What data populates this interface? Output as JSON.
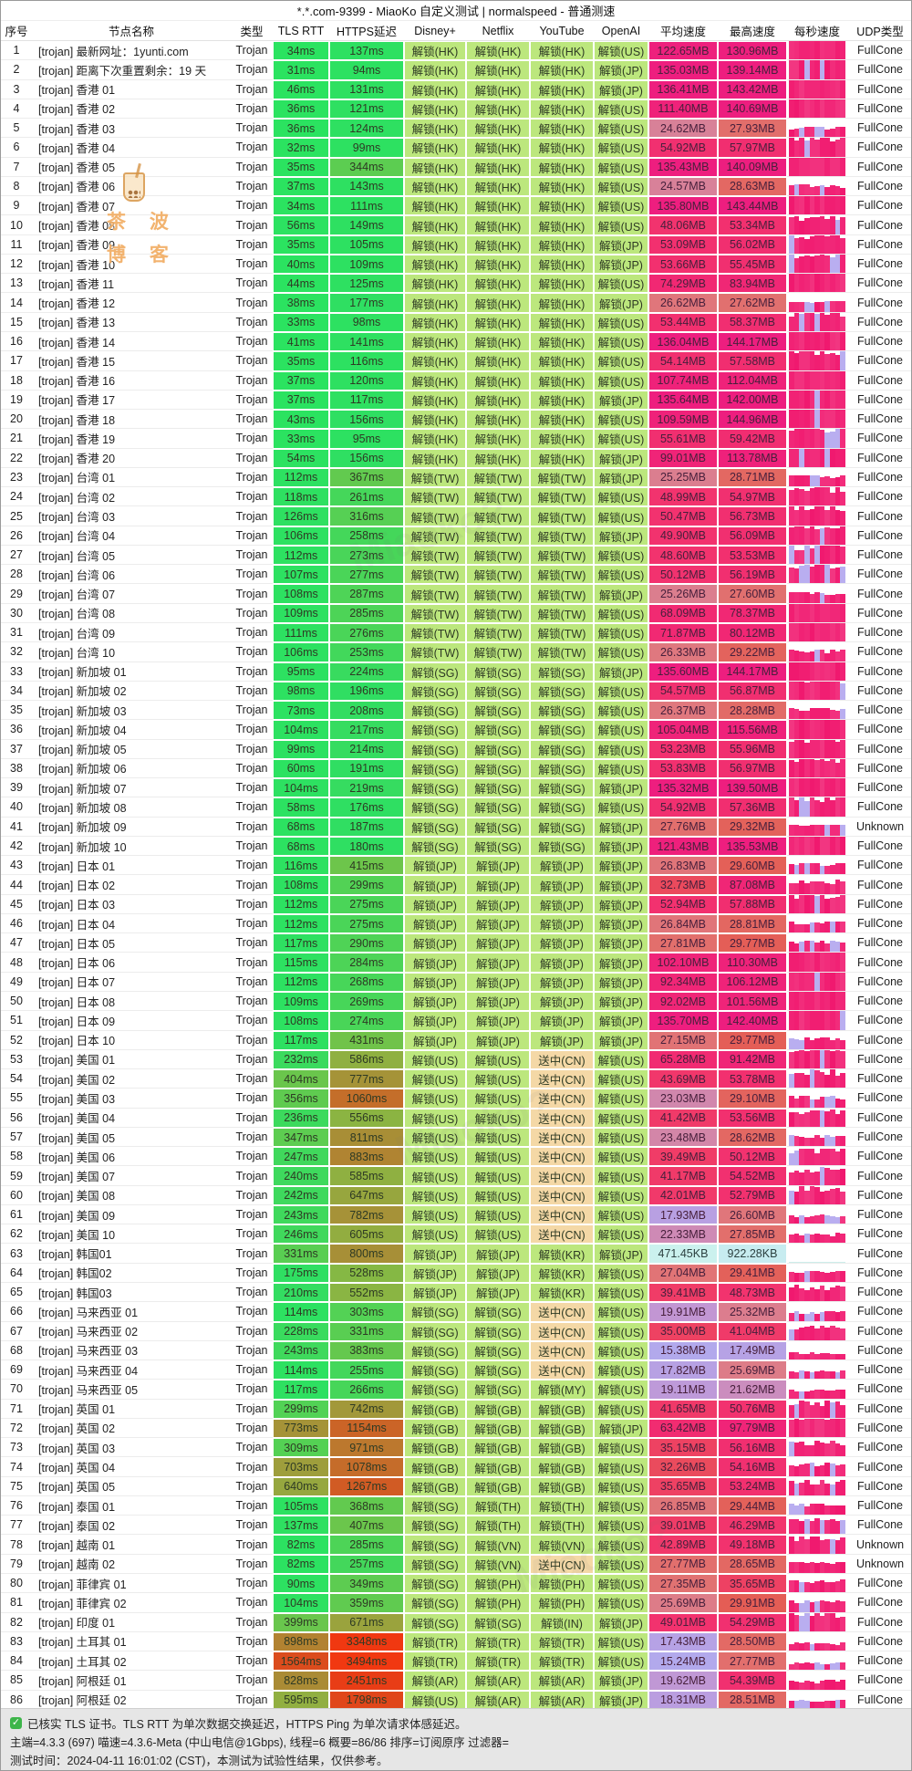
{
  "window": {
    "title": "*.*.com-9399 - MiaoKo 自定义测试 | normalspeed - 普通测速"
  },
  "table": {
    "columns": [
      "序号",
      "节点名称",
      "类型",
      "TLS RTT",
      "HTTPS延迟",
      "Disney+",
      "Netflix",
      "YouTube",
      "OpenAI",
      "平均速度",
      "最高速度",
      "每秒速度",
      "UDP类型"
    ],
    "type_label": "Trojan",
    "rows": [
      [
        "[trojan] 最新网址：1yunti.com",
        "34ms",
        "137ms",
        "解锁(HK)",
        "解锁(HK)",
        "解锁(HK)",
        "解锁(US)",
        "122.65MB",
        "130.96MB",
        "FullCone"
      ],
      [
        "[trojan] 距离下次重置剩余：19 天",
        "31ms",
        "94ms",
        "解锁(HK)",
        "解锁(HK)",
        "解锁(HK)",
        "解锁(JP)",
        "135.03MB",
        "139.14MB",
        "FullCone"
      ],
      [
        "[trojan] 香港 01",
        "46ms",
        "131ms",
        "解锁(HK)",
        "解锁(HK)",
        "解锁(HK)",
        "解锁(JP)",
        "136.41MB",
        "143.42MB",
        "FullCone"
      ],
      [
        "[trojan] 香港 02",
        "36ms",
        "121ms",
        "解锁(HK)",
        "解锁(HK)",
        "解锁(HK)",
        "解锁(US)",
        "111.40MB",
        "140.69MB",
        "FullCone"
      ],
      [
        "[trojan] 香港 03",
        "36ms",
        "124ms",
        "解锁(HK)",
        "解锁(HK)",
        "解锁(HK)",
        "解锁(US)",
        "24.62MB",
        "27.93MB",
        "FullCone"
      ],
      [
        "[trojan] 香港 04",
        "32ms",
        "99ms",
        "解锁(HK)",
        "解锁(HK)",
        "解锁(HK)",
        "解锁(US)",
        "54.92MB",
        "57.97MB",
        "FullCone"
      ],
      [
        "[trojan] 香港 05",
        "35ms",
        "344ms",
        "解锁(HK)",
        "解锁(HK)",
        "解锁(HK)",
        "解锁(US)",
        "135.43MB",
        "140.09MB",
        "FullCone"
      ],
      [
        "[trojan] 香港 06",
        "37ms",
        "143ms",
        "解锁(HK)",
        "解锁(HK)",
        "解锁(HK)",
        "解锁(US)",
        "24.57MB",
        "28.63MB",
        "FullCone"
      ],
      [
        "[trojan] 香港 07",
        "34ms",
        "111ms",
        "解锁(HK)",
        "解锁(HK)",
        "解锁(HK)",
        "解锁(US)",
        "135.80MB",
        "143.44MB",
        "FullCone"
      ],
      [
        "[trojan] 香港 08",
        "56ms",
        "149ms",
        "解锁(HK)",
        "解锁(HK)",
        "解锁(HK)",
        "解锁(US)",
        "48.06MB",
        "53.34MB",
        "FullCone"
      ],
      [
        "[trojan] 香港 09",
        "35ms",
        "105ms",
        "解锁(HK)",
        "解锁(HK)",
        "解锁(HK)",
        "解锁(JP)",
        "53.09MB",
        "56.02MB",
        "FullCone"
      ],
      [
        "[trojan] 香港 10",
        "40ms",
        "109ms",
        "解锁(HK)",
        "解锁(HK)",
        "解锁(HK)",
        "解锁(JP)",
        "53.66MB",
        "55.45MB",
        "FullCone"
      ],
      [
        "[trojan] 香港 11",
        "44ms",
        "125ms",
        "解锁(HK)",
        "解锁(HK)",
        "解锁(HK)",
        "解锁(US)",
        "74.29MB",
        "83.94MB",
        "FullCone"
      ],
      [
        "[trojan] 香港 12",
        "38ms",
        "177ms",
        "解锁(HK)",
        "解锁(HK)",
        "解锁(HK)",
        "解锁(JP)",
        "26.62MB",
        "27.62MB",
        "FullCone"
      ],
      [
        "[trojan] 香港 13",
        "33ms",
        "98ms",
        "解锁(HK)",
        "解锁(HK)",
        "解锁(HK)",
        "解锁(US)",
        "53.44MB",
        "58.37MB",
        "FullCone"
      ],
      [
        "[trojan] 香港 14",
        "41ms",
        "141ms",
        "解锁(HK)",
        "解锁(HK)",
        "解锁(HK)",
        "解锁(US)",
        "136.04MB",
        "144.17MB",
        "FullCone"
      ],
      [
        "[trojan] 香港 15",
        "35ms",
        "116ms",
        "解锁(HK)",
        "解锁(HK)",
        "解锁(HK)",
        "解锁(US)",
        "54.14MB",
        "57.58MB",
        "FullCone"
      ],
      [
        "[trojan] 香港 16",
        "37ms",
        "120ms",
        "解锁(HK)",
        "解锁(HK)",
        "解锁(HK)",
        "解锁(US)",
        "107.74MB",
        "112.04MB",
        "FullCone"
      ],
      [
        "[trojan] 香港 17",
        "37ms",
        "117ms",
        "解锁(HK)",
        "解锁(HK)",
        "解锁(HK)",
        "解锁(JP)",
        "135.64MB",
        "142.00MB",
        "FullCone"
      ],
      [
        "[trojan] 香港 18",
        "43ms",
        "156ms",
        "解锁(HK)",
        "解锁(HK)",
        "解锁(HK)",
        "解锁(US)",
        "109.59MB",
        "144.96MB",
        "FullCone"
      ],
      [
        "[trojan] 香港 19",
        "33ms",
        "95ms",
        "解锁(HK)",
        "解锁(HK)",
        "解锁(HK)",
        "解锁(US)",
        "55.61MB",
        "59.42MB",
        "FullCone"
      ],
      [
        "[trojan] 香港 20",
        "54ms",
        "156ms",
        "解锁(HK)",
        "解锁(HK)",
        "解锁(HK)",
        "解锁(JP)",
        "99.01MB",
        "113.78MB",
        "FullCone"
      ],
      [
        "[trojan] 台湾 01",
        "112ms",
        "367ms",
        "解锁(TW)",
        "解锁(TW)",
        "解锁(TW)",
        "解锁(JP)",
        "25.25MB",
        "28.71MB",
        "FullCone"
      ],
      [
        "[trojan] 台湾 02",
        "118ms",
        "261ms",
        "解锁(TW)",
        "解锁(TW)",
        "解锁(TW)",
        "解锁(US)",
        "48.99MB",
        "54.97MB",
        "FullCone"
      ],
      [
        "[trojan] 台湾 03",
        "126ms",
        "316ms",
        "解锁(TW)",
        "解锁(TW)",
        "解锁(TW)",
        "解锁(US)",
        "50.47MB",
        "56.73MB",
        "FullCone"
      ],
      [
        "[trojan] 台湾 04",
        "106ms",
        "258ms",
        "解锁(TW)",
        "解锁(TW)",
        "解锁(TW)",
        "解锁(JP)",
        "49.90MB",
        "56.09MB",
        "FullCone"
      ],
      [
        "[trojan] 台湾 05",
        "112ms",
        "273ms",
        "解锁(TW)",
        "解锁(TW)",
        "解锁(TW)",
        "解锁(US)",
        "48.60MB",
        "53.53MB",
        "FullCone"
      ],
      [
        "[trojan] 台湾 06",
        "107ms",
        "277ms",
        "解锁(TW)",
        "解锁(TW)",
        "解锁(TW)",
        "解锁(US)",
        "50.12MB",
        "56.19MB",
        "FullCone"
      ],
      [
        "[trojan] 台湾 07",
        "108ms",
        "287ms",
        "解锁(TW)",
        "解锁(TW)",
        "解锁(TW)",
        "解锁(JP)",
        "25.26MB",
        "27.60MB",
        "FullCone"
      ],
      [
        "[trojan] 台湾 08",
        "109ms",
        "285ms",
        "解锁(TW)",
        "解锁(TW)",
        "解锁(TW)",
        "解锁(US)",
        "68.09MB",
        "78.37MB",
        "FullCone"
      ],
      [
        "[trojan] 台湾 09",
        "111ms",
        "276ms",
        "解锁(TW)",
        "解锁(TW)",
        "解锁(TW)",
        "解锁(US)",
        "71.87MB",
        "80.12MB",
        "FullCone"
      ],
      [
        "[trojan] 台湾 10",
        "106ms",
        "253ms",
        "解锁(TW)",
        "解锁(TW)",
        "解锁(TW)",
        "解锁(US)",
        "26.33MB",
        "29.22MB",
        "FullCone"
      ],
      [
        "[trojan] 新加坡 01",
        "95ms",
        "224ms",
        "解锁(SG)",
        "解锁(SG)",
        "解锁(SG)",
        "解锁(JP)",
        "135.60MB",
        "144.17MB",
        "FullCone"
      ],
      [
        "[trojan] 新加坡 02",
        "98ms",
        "196ms",
        "解锁(SG)",
        "解锁(SG)",
        "解锁(SG)",
        "解锁(US)",
        "54.57MB",
        "56.87MB",
        "FullCone"
      ],
      [
        "[trojan] 新加坡 03",
        "73ms",
        "208ms",
        "解锁(SG)",
        "解锁(SG)",
        "解锁(SG)",
        "解锁(US)",
        "26.37MB",
        "28.28MB",
        "FullCone"
      ],
      [
        "[trojan] 新加坡 04",
        "104ms",
        "217ms",
        "解锁(SG)",
        "解锁(SG)",
        "解锁(SG)",
        "解锁(US)",
        "105.04MB",
        "115.56MB",
        "FullCone"
      ],
      [
        "[trojan] 新加坡 05",
        "99ms",
        "214ms",
        "解锁(SG)",
        "解锁(SG)",
        "解锁(SG)",
        "解锁(US)",
        "53.23MB",
        "55.96MB",
        "FullCone"
      ],
      [
        "[trojan] 新加坡 06",
        "60ms",
        "191ms",
        "解锁(SG)",
        "解锁(SG)",
        "解锁(SG)",
        "解锁(US)",
        "53.83MB",
        "56.97MB",
        "FullCone"
      ],
      [
        "[trojan] 新加坡 07",
        "104ms",
        "219ms",
        "解锁(SG)",
        "解锁(SG)",
        "解锁(SG)",
        "解锁(JP)",
        "135.32MB",
        "139.50MB",
        "FullCone"
      ],
      [
        "[trojan] 新加坡 08",
        "58ms",
        "176ms",
        "解锁(SG)",
        "解锁(SG)",
        "解锁(SG)",
        "解锁(US)",
        "54.92MB",
        "57.36MB",
        "FullCone"
      ],
      [
        "[trojan] 新加坡 09",
        "68ms",
        "187ms",
        "解锁(SG)",
        "解锁(SG)",
        "解锁(SG)",
        "解锁(JP)",
        "27.76MB",
        "29.32MB",
        "Unknown"
      ],
      [
        "[trojan] 新加坡 10",
        "68ms",
        "180ms",
        "解锁(SG)",
        "解锁(SG)",
        "解锁(SG)",
        "解锁(JP)",
        "121.43MB",
        "135.53MB",
        "FullCone"
      ],
      [
        "[trojan] 日本 01",
        "116ms",
        "415ms",
        "解锁(JP)",
        "解锁(JP)",
        "解锁(JP)",
        "解锁(JP)",
        "26.83MB",
        "29.60MB",
        "FullCone"
      ],
      [
        "[trojan] 日本 02",
        "108ms",
        "299ms",
        "解锁(JP)",
        "解锁(JP)",
        "解锁(JP)",
        "解锁(JP)",
        "32.73MB",
        "87.08MB",
        "FullCone"
      ],
      [
        "[trojan] 日本 03",
        "112ms",
        "275ms",
        "解锁(JP)",
        "解锁(JP)",
        "解锁(JP)",
        "解锁(JP)",
        "52.94MB",
        "57.88MB",
        "FullCone"
      ],
      [
        "[trojan] 日本 04",
        "112ms",
        "275ms",
        "解锁(JP)",
        "解锁(JP)",
        "解锁(JP)",
        "解锁(JP)",
        "26.84MB",
        "28.81MB",
        "FullCone"
      ],
      [
        "[trojan] 日本 05",
        "117ms",
        "290ms",
        "解锁(JP)",
        "解锁(JP)",
        "解锁(JP)",
        "解锁(JP)",
        "27.81MB",
        "29.77MB",
        "FullCone"
      ],
      [
        "[trojan] 日本 06",
        "115ms",
        "284ms",
        "解锁(JP)",
        "解锁(JP)",
        "解锁(JP)",
        "解锁(JP)",
        "102.10MB",
        "110.30MB",
        "FullCone"
      ],
      [
        "[trojan] 日本 07",
        "112ms",
        "268ms",
        "解锁(JP)",
        "解锁(JP)",
        "解锁(JP)",
        "解锁(JP)",
        "92.34MB",
        "106.12MB",
        "FullCone"
      ],
      [
        "[trojan] 日本 08",
        "109ms",
        "269ms",
        "解锁(JP)",
        "解锁(JP)",
        "解锁(JP)",
        "解锁(JP)",
        "92.02MB",
        "101.56MB",
        "FullCone"
      ],
      [
        "[trojan] 日本 09",
        "108ms",
        "274ms",
        "解锁(JP)",
        "解锁(JP)",
        "解锁(JP)",
        "解锁(JP)",
        "135.70MB",
        "142.40MB",
        "FullCone"
      ],
      [
        "[trojan] 日本 10",
        "117ms",
        "431ms",
        "解锁(JP)",
        "解锁(JP)",
        "解锁(JP)",
        "解锁(JP)",
        "27.15MB",
        "29.77MB",
        "FullCone"
      ],
      [
        "[trojan] 美国 01",
        "232ms",
        "586ms",
        "解锁(US)",
        "解锁(US)",
        "送中(CN)",
        "解锁(US)",
        "65.28MB",
        "91.42MB",
        "FullCone"
      ],
      [
        "[trojan] 美国 02",
        "404ms",
        "777ms",
        "解锁(US)",
        "解锁(US)",
        "送中(CN)",
        "解锁(US)",
        "43.69MB",
        "53.78MB",
        "FullCone"
      ],
      [
        "[trojan] 美国 03",
        "356ms",
        "1060ms",
        "解锁(US)",
        "解锁(US)",
        "送中(CN)",
        "解锁(US)",
        "23.03MB",
        "29.10MB",
        "FullCone"
      ],
      [
        "[trojan] 美国 04",
        "236ms",
        "556ms",
        "解锁(US)",
        "解锁(US)",
        "送中(CN)",
        "解锁(US)",
        "41.42MB",
        "53.56MB",
        "FullCone"
      ],
      [
        "[trojan] 美国 05",
        "347ms",
        "811ms",
        "解锁(US)",
        "解锁(US)",
        "送中(CN)",
        "解锁(US)",
        "23.48MB",
        "28.62MB",
        "FullCone"
      ],
      [
        "[trojan] 美国 06",
        "247ms",
        "883ms",
        "解锁(US)",
        "解锁(US)",
        "送中(CN)",
        "解锁(US)",
        "39.49MB",
        "50.12MB",
        "FullCone"
      ],
      [
        "[trojan] 美国 07",
        "240ms",
        "585ms",
        "解锁(US)",
        "解锁(US)",
        "送中(CN)",
        "解锁(US)",
        "41.17MB",
        "54.52MB",
        "FullCone"
      ],
      [
        "[trojan] 美国 08",
        "242ms",
        "647ms",
        "解锁(US)",
        "解锁(US)",
        "送中(CN)",
        "解锁(US)",
        "42.01MB",
        "52.79MB",
        "FullCone"
      ],
      [
        "[trojan] 美国 09",
        "243ms",
        "782ms",
        "解锁(US)",
        "解锁(US)",
        "送中(CN)",
        "解锁(US)",
        "17.93MB",
        "26.60MB",
        "FullCone"
      ],
      [
        "[trojan] 美国 10",
        "246ms",
        "605ms",
        "解锁(US)",
        "解锁(US)",
        "送中(CN)",
        "解锁(US)",
        "22.33MB",
        "27.85MB",
        "FullCone"
      ],
      [
        "[trojan] 韩国01",
        "331ms",
        "800ms",
        "解锁(JP)",
        "解锁(JP)",
        "解锁(KR)",
        "解锁(JP)",
        "471.45KB",
        "922.28KB",
        "FullCone"
      ],
      [
        "[trojan] 韩国02",
        "175ms",
        "528ms",
        "解锁(JP)",
        "解锁(JP)",
        "解锁(KR)",
        "解锁(US)",
        "27.04MB",
        "29.41MB",
        "FullCone"
      ],
      [
        "[trojan] 韩国03",
        "210ms",
        "552ms",
        "解锁(JP)",
        "解锁(JP)",
        "解锁(KR)",
        "解锁(US)",
        "39.41MB",
        "48.73MB",
        "FullCone"
      ],
      [
        "[trojan] 马来西亚 01",
        "114ms",
        "303ms",
        "解锁(SG)",
        "解锁(SG)",
        "送中(CN)",
        "解锁(US)",
        "19.91MB",
        "25.32MB",
        "FullCone"
      ],
      [
        "[trojan] 马来西亚 02",
        "228ms",
        "331ms",
        "解锁(SG)",
        "解锁(SG)",
        "送中(CN)",
        "解锁(US)",
        "35.00MB",
        "41.04MB",
        "FullCone"
      ],
      [
        "[trojan] 马来西亚 03",
        "243ms",
        "383ms",
        "解锁(SG)",
        "解锁(SG)",
        "送中(CN)",
        "解锁(US)",
        "15.38MB",
        "17.49MB",
        "FullCone"
      ],
      [
        "[trojan] 马来西亚 04",
        "114ms",
        "255ms",
        "解锁(SG)",
        "解锁(SG)",
        "送中(CN)",
        "解锁(US)",
        "17.82MB",
        "25.69MB",
        "FullCone"
      ],
      [
        "[trojan] 马来西亚 05",
        "117ms",
        "266ms",
        "解锁(SG)",
        "解锁(SG)",
        "解锁(MY)",
        "解锁(US)",
        "19.11MB",
        "21.62MB",
        "FullCone"
      ],
      [
        "[trojan] 英国 01",
        "299ms",
        "742ms",
        "解锁(GB)",
        "解锁(GB)",
        "解锁(GB)",
        "解锁(US)",
        "41.65MB",
        "50.76MB",
        "FullCone"
      ],
      [
        "[trojan] 英国 02",
        "773ms",
        "1154ms",
        "解锁(GB)",
        "解锁(GB)",
        "解锁(GB)",
        "解锁(JP)",
        "63.42MB",
        "97.79MB",
        "FullCone"
      ],
      [
        "[trojan] 英国 03",
        "309ms",
        "971ms",
        "解锁(GB)",
        "解锁(GB)",
        "解锁(GB)",
        "解锁(US)",
        "35.15MB",
        "56.16MB",
        "FullCone"
      ],
      [
        "[trojan] 英国 04",
        "703ms",
        "1078ms",
        "解锁(GB)",
        "解锁(GB)",
        "解锁(GB)",
        "解锁(US)",
        "32.26MB",
        "54.16MB",
        "FullCone"
      ],
      [
        "[trojan] 英国 05",
        "640ms",
        "1267ms",
        "解锁(GB)",
        "解锁(GB)",
        "解锁(GB)",
        "解锁(US)",
        "35.65MB",
        "53.24MB",
        "FullCone"
      ],
      [
        "[trojan] 泰国 01",
        "105ms",
        "368ms",
        "解锁(SG)",
        "解锁(TH)",
        "解锁(TH)",
        "解锁(US)",
        "26.85MB",
        "29.44MB",
        "FullCone"
      ],
      [
        "[trojan] 泰国 02",
        "137ms",
        "407ms",
        "解锁(SG)",
        "解锁(TH)",
        "解锁(TH)",
        "解锁(US)",
        "39.01MB",
        "46.29MB",
        "FullCone"
      ],
      [
        "[trojan] 越南 01",
        "82ms",
        "285ms",
        "解锁(SG)",
        "解锁(VN)",
        "解锁(VN)",
        "解锁(US)",
        "42.89MB",
        "49.18MB",
        "Unknown"
      ],
      [
        "[trojan] 越南 02",
        "82ms",
        "257ms",
        "解锁(SG)",
        "解锁(VN)",
        "送中(CN)",
        "解锁(US)",
        "27.77MB",
        "28.65MB",
        "Unknown"
      ],
      [
        "[trojan] 菲律宾 01",
        "90ms",
        "349ms",
        "解锁(SG)",
        "解锁(PH)",
        "解锁(PH)",
        "解锁(US)",
        "27.35MB",
        "35.65MB",
        "FullCone"
      ],
      [
        "[trojan] 菲律宾 02",
        "104ms",
        "359ms",
        "解锁(SG)",
        "解锁(PH)",
        "解锁(PH)",
        "解锁(US)",
        "25.69MB",
        "29.91MB",
        "FullCone"
      ],
      [
        "[trojan] 印度 01",
        "399ms",
        "671ms",
        "解锁(SG)",
        "解锁(SG)",
        "解锁(IN)",
        "解锁(JP)",
        "49.01MB",
        "54.29MB",
        "FullCone"
      ],
      [
        "[trojan] 土耳其 01",
        "898ms",
        "3348ms",
        "解锁(TR)",
        "解锁(TR)",
        "解锁(TR)",
        "解锁(US)",
        "17.43MB",
        "28.50MB",
        "FullCone"
      ],
      [
        "[trojan] 土耳其 02",
        "1564ms",
        "3494ms",
        "解锁(TR)",
        "解锁(TR)",
        "解锁(TR)",
        "解锁(US)",
        "15.24MB",
        "27.77MB",
        "FullCone"
      ],
      [
        "[trojan] 阿根廷 01",
        "828ms",
        "2451ms",
        "解锁(AR)",
        "解锁(AR)",
        "解锁(AR)",
        "解锁(JP)",
        "19.62MB",
        "54.39MB",
        "FullCone"
      ],
      [
        "[trojan] 阿根廷 02",
        "595ms",
        "1798ms",
        "解锁(US)",
        "解锁(AR)",
        "解锁(AR)",
        "解锁(JP)",
        "18.31MB",
        "28.51MB",
        "FullCone"
      ]
    ]
  },
  "footer": {
    "check_glyph": "✓",
    "line1": "已核实 TLS 证书。TLS RTT 为单次数据交换延迟，HTTPS Ping 为单次请求体感延迟。",
    "line2": "主端=4.3.3 (697) 喵速=4.3.6-Meta (中山电信@1Gbps), 线程=6 概要=86/86 排序=订阅原序 过滤器=",
    "line3": "测试时间：2024-04-11 16:01:02 (CST)，本测试为试验性结果，仅供参考。"
  },
  "watermark": {
    "line1": "茶 波",
    "line2": "博 客",
    "brand": "Miaoko?"
  },
  "colors": {
    "unlock_bg": "#bce77d",
    "relay_bg": "#f4d8a6",
    "bar_pink": "#f4447c",
    "bar_lavender": "#b9aef0",
    "bar_cyan": "#cdeeea"
  }
}
